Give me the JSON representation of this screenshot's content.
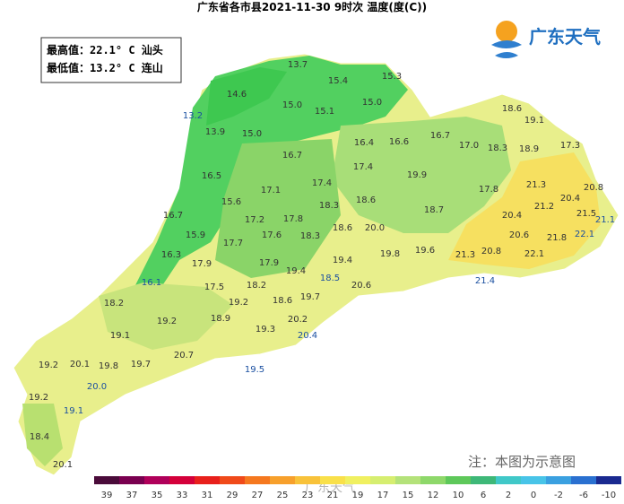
{
  "header": {
    "title": "广东省各市县2021-11-30 9时次 温度(度(C))",
    "logo": "广东天气"
  },
  "stats": {
    "max": "最高值：22.1° C 汕头",
    "min": "最低值：13.2° C 连山"
  },
  "note": "注：本图为示意图",
  "watermark": "广东天气",
  "stations": [
    "13.7",
    "15.4",
    "15.3",
    "14.6",
    "15.0",
    "15.1",
    "15.0",
    "13.2",
    "13.9",
    "15.0",
    "18.6",
    "19.1",
    "16.7",
    "16.4",
    "16.6",
    "16.7",
    "17.0",
    "18.3",
    "18.9",
    "17.3",
    "17.4",
    "19.9",
    "16.5",
    "17.1",
    "17.4",
    "17.8",
    "21.3",
    "20.8",
    "15.6",
    "18.3",
    "18.6",
    "20.4",
    "21.2",
    "16.7",
    "17.2",
    "17.8",
    "18.7",
    "20.4",
    "21.5",
    "21.1",
    "15.9",
    "17.7",
    "17.6",
    "18.3",
    "18.6",
    "20.0",
    "20.6",
    "21.8",
    "22.1",
    "16.3",
    "17.9",
    "17.9",
    "19.4",
    "19.8",
    "19.6",
    "21.3",
    "20.8",
    "22.1",
    "19.4",
    "16.1",
    "17.5",
    "18.2",
    "18.5",
    "20.6",
    "21.4",
    "18.2",
    "19.2",
    "18.6",
    "19.7",
    "19.2",
    "18.9",
    "20.2",
    "19.3",
    "20.4",
    "19.1",
    "20.7",
    "19.2",
    "20.1",
    "19.8",
    "19.7",
    "19.5",
    "20.0",
    "19.2",
    "19.1",
    "18.4",
    "20.1"
  ],
  "legend": {
    "labels": [
      39,
      37,
      35,
      33,
      31,
      29,
      27,
      25,
      23,
      21,
      19,
      17,
      15,
      12,
      10,
      6,
      2,
      0,
      -2,
      -6,
      -10
    ],
    "colors": [
      "#4a0b3a",
      "#7a0050",
      "#b0005a",
      "#d4003a",
      "#e8201c",
      "#f04a1a",
      "#f5781f",
      "#f7a02c",
      "#f8c23a",
      "#f9e04a",
      "#f0f060",
      "#d6ee70",
      "#b4e27a",
      "#8ed86a",
      "#5ec85a",
      "#3eb878",
      "#40c8c8",
      "#48c4e8",
      "#3aa0e0",
      "#2a70d0",
      "#1a2a90"
    ]
  }
}
